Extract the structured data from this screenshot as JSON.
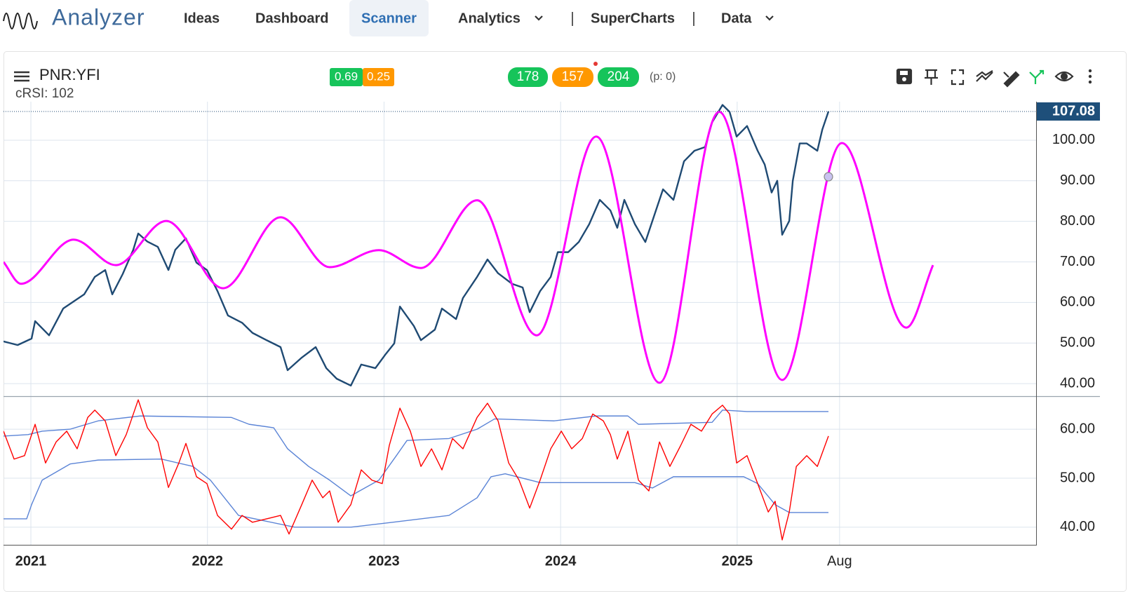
{
  "app": {
    "logo": "Analyzer",
    "nav": [
      "Ideas",
      "Dashboard",
      "Scanner",
      "Analytics",
      "SuperCharts",
      "Data"
    ]
  },
  "chart_header": {
    "symbol": "PNR:YFI",
    "indicator": "cRSI: 102",
    "badges_left": [
      0.69,
      0.25
    ],
    "badges_right": [
      178,
      157,
      204
    ],
    "p_label": "(p: 0)"
  },
  "chart_data": [
    {
      "type": "line",
      "grid": true,
      "last_price": 107.08,
      "xlim": [
        2020.845,
        2026.693
      ],
      "xticks": [
        2021,
        2022,
        2023,
        2024,
        2025,
        {
          "value": 2025.58,
          "label": "Aug"
        }
      ],
      "ylim": [
        36.9,
        109.5
      ],
      "yticks": [
        {
          "value": 40,
          "label": "40.00"
        },
        {
          "value": 50,
          "label": "50.00"
        },
        {
          "value": 60,
          "label": "60.00"
        },
        {
          "value": 70,
          "label": "70.00"
        },
        {
          "value": 80,
          "label": "80.00"
        },
        {
          "value": 90,
          "label": "90.00"
        },
        {
          "value": 100,
          "label": "100.00"
        }
      ],
      "series": [
        {
          "color": "#1f4a73",
          "x": [
            2020.845,
            2020.925,
            2021.004,
            2021.024,
            2021.103,
            2021.183,
            2021.302,
            2021.362,
            2021.421,
            2021.461,
            2021.52,
            2021.58,
            2021.608,
            2021.66,
            2021.719,
            2021.779,
            2021.818,
            2021.878,
            2021.938,
            2021.997,
            2022.057,
            2022.116,
            2022.196,
            2022.255,
            2022.335,
            2022.414,
            2022.454,
            2022.534,
            2022.613,
            2022.673,
            2022.732,
            2022.812,
            2022.871,
            2022.951,
            2023.01,
            2023.058,
            2023.09,
            2023.169,
            2023.209,
            2023.288,
            2023.328,
            2023.408,
            2023.447,
            2023.527,
            2023.586,
            2023.646,
            2023.725,
            2023.785,
            2023.825,
            2023.884,
            2023.944,
            2023.984,
            2024.043,
            2024.103,
            2024.162,
            2024.222,
            2024.282,
            2024.321,
            2024.361,
            2024.421,
            2024.48,
            2024.54,
            2024.58,
            2024.639,
            2024.699,
            2024.758,
            2024.818,
            2024.858,
            2024.917,
            2024.957,
            2024.997,
            2025.056,
            2025.116,
            2025.156,
            2025.195,
            2025.227,
            2025.255,
            2025.295,
            2025.315,
            2025.354,
            2025.394,
            2025.454,
            2025.482,
            2025.517
          ],
          "values": [
            50.4,
            49.5,
            51.1,
            55.4,
            51.9,
            58.5,
            62,
            66.3,
            68,
            62,
            67,
            73,
            77,
            75,
            73.7,
            68,
            73,
            75.8,
            69.8,
            68,
            62.8,
            56.8,
            55,
            52.5,
            50.7,
            49,
            43.3,
            46.4,
            49,
            43.8,
            41.2,
            39.5,
            44.7,
            43.8,
            47.3,
            49.9,
            59,
            54.2,
            50.7,
            53.3,
            58.5,
            55.9,
            61.1,
            66.3,
            70.6,
            67.2,
            64.6,
            63.7,
            57.6,
            62.8,
            66.3,
            72.4,
            72.4,
            74.9,
            79.3,
            85.3,
            82.7,
            78.4,
            85.3,
            79.3,
            74.9,
            82.7,
            87.9,
            85.3,
            94.8,
            97.4,
            98.3,
            104.4,
            108.7,
            107,
            100.9,
            103.5,
            97.4,
            94,
            87.1,
            90,
            76.7,
            80.1,
            90,
            99.2,
            99.2,
            97.4,
            102.6,
            107.08
          ]
        },
        {
          "color": "#ff00ff",
          "smooth": true,
          "x": [
            2020.845,
            2020.944,
            2021.242,
            2021.481,
            2021.767,
            2022.089,
            2022.414,
            2022.692,
            2022.971,
            2023.209,
            2023.527,
            2023.865,
            2024.202,
            2024.56,
            2024.898,
            2025.255,
            2025.593,
            2025.958,
            2026.109
          ],
          "values": [
            70.0,
            64.6,
            75.5,
            69.2,
            80.1,
            63.5,
            81.0,
            68.7,
            72.9,
            68.5,
            85.2,
            51.9,
            100.9,
            40.2,
            107.0,
            40.9,
            99.3,
            53.8,
            69.2
          ]
        }
      ],
      "marker": {
        "x": 2025.517,
        "value": 91.0,
        "color": "#c9c3f0"
      }
    },
    {
      "type": "line",
      "grid": true,
      "xlim": [
        2020.845,
        2026.693
      ],
      "xticks": [
        2021,
        2022,
        2023,
        2024,
        2025,
        {
          "value": 2025.58,
          "label": "Aug"
        }
      ],
      "ylim": [
        36.4,
        66.6
      ],
      "yticks": [
        {
          "value": 40,
          "label": "40.00"
        },
        {
          "value": 50,
          "label": "50.00"
        },
        {
          "value": 60,
          "label": "60.00"
        }
      ],
      "series": [
        {
          "color": "#5b84d6",
          "x": [
            2020.845,
            2020.984,
            2021.064,
            2021.222,
            2021.381,
            2021.62,
            2022.136,
            2022.236,
            2022.375,
            2022.454,
            2022.573,
            2022.692,
            2022.812,
            2022.971,
            2023.07,
            2023.13,
            2023.368,
            2023.527,
            2023.626,
            2023.964,
            2024.202,
            2024.381,
            2024.441,
            2024.858,
            2024.917,
            2025.056,
            2025.517
          ],
          "values": [
            58.6,
            58.9,
            59.6,
            60,
            61.7,
            62.7,
            62.4,
            61,
            60.3,
            56,
            52.4,
            49.6,
            46.4,
            49.6,
            54.6,
            57.7,
            58.1,
            60,
            62.1,
            61.7,
            62.7,
            62.7,
            61,
            61.4,
            63.9,
            63.6,
            63.6
          ]
        },
        {
          "color": "#5b84d6",
          "x": [
            2020.845,
            2020.976,
            2021.004,
            2021.064,
            2021.222,
            2021.381,
            2021.739,
            2021.918,
            2022.017,
            2022.176,
            2022.494,
            2022.812,
            2023.05,
            2023.368,
            2023.527,
            2023.606,
            2023.686,
            2023.884,
            2024.421,
            2024.52,
            2024.639,
            2025.037,
            2025.116,
            2025.215,
            2025.295,
            2025.517
          ],
          "values": [
            41.7,
            41.7,
            44.6,
            49.6,
            52.9,
            53.7,
            53.9,
            52.4,
            49.6,
            42.4,
            40,
            40,
            41,
            42.4,
            46,
            50.3,
            50.9,
            49.1,
            49.1,
            48,
            50.3,
            50.3,
            48.9,
            44.6,
            43,
            43
          ]
        },
        {
          "color": "#ff0000",
          "x": [
            2020.845,
            2020.905,
            2020.964,
            2021.024,
            2021.083,
            2021.143,
            2021.203,
            2021.262,
            2021.322,
            2021.362,
            2021.421,
            2021.481,
            2021.54,
            2021.608,
            2021.66,
            2021.719,
            2021.779,
            2021.838,
            2021.878,
            2021.938,
            2021.997,
            2022.057,
            2022.136,
            2022.196,
            2022.255,
            2022.335,
            2022.414,
            2022.462,
            2022.534,
            2022.593,
            2022.653,
            2022.692,
            2022.74,
            2022.812,
            2022.871,
            2022.931,
            2022.99,
            2023.03,
            2023.09,
            2023.149,
            2023.209,
            2023.269,
            2023.328,
            2023.388,
            2023.447,
            2023.527,
            2023.586,
            2023.646,
            2023.706,
            2023.765,
            2023.825,
            2023.884,
            2023.944,
            2024.004,
            2024.063,
            2024.123,
            2024.182,
            2024.242,
            2024.282,
            2024.321,
            2024.381,
            2024.441,
            2024.5,
            2024.56,
            2024.619,
            2024.679,
            2024.738,
            2024.798,
            2024.858,
            2024.917,
            2024.957,
            2024.997,
            2025.056,
            2025.116,
            2025.176,
            2025.215,
            2025.255,
            2025.295,
            2025.335,
            2025.394,
            2025.454,
            2025.517
          ],
          "values": [
            59.6,
            53.9,
            54.6,
            61,
            53.1,
            57.4,
            59.6,
            56,
            62.4,
            63.9,
            61.7,
            54.6,
            58.9,
            66,
            60.3,
            57.4,
            48.1,
            53.1,
            57.1,
            50.3,
            48.9,
            42.4,
            39.6,
            42.4,
            41,
            41.7,
            42.4,
            38.6,
            44.6,
            49.6,
            46,
            47.4,
            41,
            44.6,
            51.7,
            49.6,
            48.9,
            56.7,
            64.3,
            59.6,
            52.4,
            56,
            51.7,
            58.1,
            56,
            62.4,
            65.3,
            61.7,
            53.1,
            49.6,
            43.9,
            49.6,
            56,
            59.6,
            56,
            58.1,
            63.1,
            61.7,
            58.9,
            53.9,
            59.6,
            49.6,
            47.4,
            57.4,
            52.4,
            56.6,
            61,
            59.6,
            63.1,
            64.9,
            63.1,
            53.1,
            54.6,
            48.9,
            43.1,
            45.3,
            37.4,
            43.1,
            52.4,
            54.6,
            52.4,
            58.6
          ]
        }
      ]
    }
  ]
}
